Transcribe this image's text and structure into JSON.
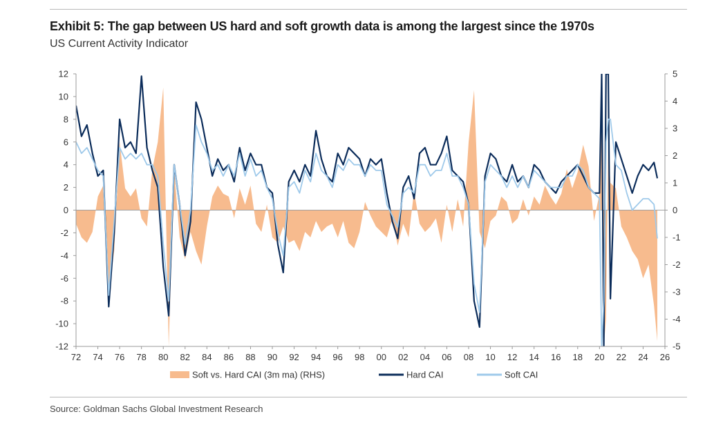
{
  "header": {
    "title": "Exhibit 5: The gap between US hard and soft growth data is among the largest since the 1970s",
    "subtitle": "US Current Activity Indicator"
  },
  "footer": {
    "source": "Source: Goldman Sachs Global Investment Research"
  },
  "chart_data": {
    "type": "line",
    "title": "Exhibit 5: The gap between US hard and soft growth data is among the largest since the 1970s",
    "subtitle": "US Current Activity Indicator",
    "x_ticks": [
      "72",
      "74",
      "76",
      "78",
      "80",
      "82",
      "84",
      "86",
      "88",
      "90",
      "92",
      "94",
      "96",
      "98",
      "00",
      "02",
      "04",
      "06",
      "08",
      "10",
      "12",
      "14",
      "16",
      "18",
      "20",
      "22",
      "24",
      "26"
    ],
    "x_range": [
      1972,
      2026
    ],
    "ylim_left": [
      -12,
      12
    ],
    "y_ticks_left": [
      12,
      10,
      8,
      6,
      4,
      2,
      0,
      -2,
      -4,
      -6,
      -8,
      -10,
      -12
    ],
    "ylim_right": [
      -5,
      5
    ],
    "y_ticks_right": [
      5,
      4,
      3,
      2,
      1,
      0,
      -1,
      -2,
      -3,
      -4,
      -5
    ],
    "grid": false,
    "legend_position": "bottom",
    "colors": {
      "gap": "#f7bb8e",
      "hard": "#0b2c5a",
      "soft": "#9ec9ea"
    },
    "series": [
      {
        "name": "Soft vs. Hard CAI (3m ma) (RHS)",
        "kind": "area",
        "axis": "right",
        "x": [
          1972,
          1972.5,
          1973,
          1973.5,
          1974,
          1974.5,
          1975,
          1975.5,
          1976,
          1976.5,
          1977,
          1977.5,
          1978,
          1978.5,
          1979,
          1979.5,
          1980,
          1980.5,
          1981,
          1981.5,
          1982,
          1982.5,
          1983,
          1983.5,
          1984,
          1984.5,
          1985,
          1985.5,
          1986,
          1986.5,
          1987,
          1987.5,
          1988,
          1988.5,
          1989,
          1989.5,
          1990,
          1990.5,
          1991,
          1991.5,
          1992,
          1992.5,
          1993,
          1993.5,
          1994,
          1994.5,
          1995,
          1995.5,
          1996,
          1996.5,
          1997,
          1997.5,
          1998,
          1998.5,
          1999,
          1999.5,
          2000,
          2000.5,
          2001,
          2001.5,
          2002,
          2002.5,
          2003,
          2003.5,
          2004,
          2004.5,
          2005,
          2005.5,
          2006,
          2006.5,
          2007,
          2007.5,
          2008,
          2008.5,
          2009,
          2009.5,
          2010,
          2010.5,
          2011,
          2011.5,
          2012,
          2012.5,
          2013,
          2013.5,
          2014,
          2014.5,
          2015,
          2015.5,
          2016,
          2016.5,
          2017,
          2017.5,
          2018,
          2018.5,
          2019,
          2019.5,
          2020,
          2020.2,
          2020.4,
          2020.6,
          2020.8,
          2021,
          2021.5,
          2022,
          2022.5,
          2023,
          2023.5,
          2024,
          2024.5,
          2025,
          2025.3
        ],
        "values": [
          -0.5,
          -1.0,
          -1.2,
          -0.8,
          0.5,
          0.9,
          -3.0,
          -1.5,
          2.5,
          0.8,
          0.5,
          0.8,
          -0.3,
          -0.6,
          1.5,
          2.5,
          4.5,
          -5.0,
          1.5,
          -1.0,
          -1.8,
          -0.8,
          -1.5,
          -2.0,
          -0.6,
          0.5,
          0.9,
          0.6,
          0.5,
          -0.3,
          0.8,
          0.2,
          0.9,
          -0.5,
          -0.8,
          0.2,
          -1.0,
          -1.2,
          -0.6,
          -1.2,
          -1.1,
          -1.5,
          -0.8,
          -1.0,
          -0.4,
          -0.8,
          -0.6,
          -0.5,
          -1.0,
          -0.4,
          -1.2,
          -1.4,
          -0.8,
          0.3,
          -0.2,
          -0.6,
          -0.8,
          -1.0,
          -0.3,
          -1.3,
          -0.5,
          -1.0,
          0.7,
          -0.5,
          -0.8,
          -0.6,
          -0.3,
          -1.2,
          0.2,
          -0.8,
          0.4,
          -0.6,
          2.5,
          4.4,
          -0.8,
          -1.4,
          -0.4,
          -0.2,
          0.5,
          0.3,
          -0.5,
          -0.3,
          0.4,
          -0.2,
          0.5,
          0.2,
          0.9,
          0.5,
          0.2,
          0.6,
          1.5,
          0.8,
          1.4,
          2.4,
          1.6,
          -0.4,
          0.6,
          5.0,
          -5.0,
          -4.0,
          2.5,
          1.0,
          0.8,
          -0.6,
          -1.0,
          -1.5,
          -1.8,
          -2.5,
          -2.0,
          -3.5,
          -4.8
        ]
      },
      {
        "name": "Hard CAI",
        "kind": "line",
        "axis": "left",
        "x": [
          1972,
          1972.5,
          1973,
          1973.5,
          1974,
          1974.5,
          1975,
          1975.5,
          1976,
          1976.5,
          1977,
          1977.5,
          1978,
          1978.5,
          1979,
          1979.5,
          1980,
          1980.5,
          1981,
          1981.5,
          1982,
          1982.5,
          1983,
          1983.5,
          1984,
          1984.5,
          1985,
          1985.5,
          1986,
          1986.5,
          1987,
          1987.5,
          1988,
          1988.5,
          1989,
          1989.5,
          1990,
          1990.5,
          1991,
          1991.5,
          1992,
          1992.5,
          1993,
          1993.5,
          1994,
          1994.5,
          1995,
          1995.5,
          1996,
          1996.5,
          1997,
          1997.5,
          1998,
          1998.5,
          1999,
          1999.5,
          2000,
          2000.5,
          2001,
          2001.5,
          2002,
          2002.5,
          2003,
          2003.5,
          2004,
          2004.5,
          2005,
          2005.5,
          2006,
          2006.5,
          2007,
          2007.5,
          2008,
          2008.5,
          2009,
          2009.5,
          2010,
          2010.5,
          2011,
          2011.5,
          2012,
          2012.5,
          2013,
          2013.5,
          2014,
          2014.5,
          2015,
          2015.5,
          2016,
          2016.5,
          2017,
          2017.5,
          2018,
          2018.5,
          2019,
          2019.5,
          2020,
          2020.2,
          2020.4,
          2020.6,
          2020.8,
          2021,
          2021.5,
          2022,
          2022.5,
          2023,
          2023.5,
          2024,
          2024.5,
          2025,
          2025.3
        ],
        "values": [
          9.2,
          6.5,
          7.5,
          5.0,
          3.0,
          3.5,
          -8.5,
          -2.0,
          8.0,
          5.5,
          6.0,
          5.0,
          11.8,
          5.5,
          3.5,
          2.0,
          -5.0,
          -9.3,
          4.0,
          0.5,
          -4.0,
          -1.0,
          9.5,
          8.0,
          5.5,
          3.0,
          4.5,
          3.5,
          4.0,
          2.5,
          5.5,
          3.5,
          5.0,
          4.0,
          4.0,
          2.0,
          1.5,
          -3.0,
          -5.5,
          2.5,
          3.5,
          2.5,
          4.0,
          3.0,
          7.0,
          4.5,
          3.0,
          2.5,
          5.0,
          4.0,
          5.5,
          5.0,
          4.5,
          3.0,
          4.5,
          4.0,
          4.5,
          1.5,
          -1.0,
          -2.5,
          2.0,
          3.0,
          1.0,
          5.0,
          5.5,
          4.0,
          4.0,
          5.0,
          6.5,
          3.5,
          3.0,
          2.5,
          0.5,
          -8.0,
          -10.3,
          3.0,
          5.0,
          4.5,
          3.0,
          2.5,
          4.0,
          2.5,
          3.0,
          2.0,
          4.0,
          3.5,
          2.5,
          2.0,
          1.5,
          2.5,
          3.0,
          3.5,
          4.0,
          3.0,
          2.0,
          1.5,
          1.5,
          12.0,
          -12.0,
          12.0,
          12.0,
          -7.8,
          6.0,
          4.5,
          3.0,
          1.5,
          3.0,
          4.0,
          3.5,
          4.2,
          2.8
        ]
      },
      {
        "name": "Soft CAI",
        "kind": "line",
        "axis": "left",
        "x": [
          1972,
          1972.5,
          1973,
          1973.5,
          1974,
          1974.5,
          1975,
          1975.5,
          1976,
          1976.5,
          1977,
          1977.5,
          1978,
          1978.5,
          1979,
          1979.5,
          1980,
          1980.5,
          1981,
          1981.5,
          1982,
          1982.5,
          1983,
          1983.5,
          1984,
          1984.5,
          1985,
          1985.5,
          1986,
          1986.5,
          1987,
          1987.5,
          1988,
          1988.5,
          1989,
          1989.5,
          1990,
          1990.5,
          1991,
          1991.5,
          1992,
          1992.5,
          1993,
          1993.5,
          1994,
          1994.5,
          1995,
          1995.5,
          1996,
          1996.5,
          1997,
          1997.5,
          1998,
          1998.5,
          1999,
          1999.5,
          2000,
          2000.5,
          2001,
          2001.5,
          2002,
          2002.5,
          2003,
          2003.5,
          2004,
          2004.5,
          2005,
          2005.5,
          2006,
          2006.5,
          2007,
          2007.5,
          2008,
          2008.5,
          2009,
          2009.5,
          2010,
          2010.5,
          2011,
          2011.5,
          2012,
          2012.5,
          2013,
          2013.5,
          2014,
          2014.5,
          2015,
          2015.5,
          2016,
          2016.5,
          2017,
          2017.5,
          2018,
          2018.5,
          2019,
          2019.5,
          2020,
          2020.2,
          2020.4,
          2020.6,
          2020.8,
          2021,
          2021.5,
          2022,
          2022.5,
          2023,
          2023.5,
          2024,
          2024.5,
          2025,
          2025.3
        ],
        "values": [
          6.0,
          5.0,
          5.5,
          4.5,
          3.5,
          3.0,
          -7.5,
          -1.0,
          5.5,
          4.5,
          5.0,
          4.5,
          5.0,
          4.0,
          4.0,
          3.0,
          -3.0,
          -8.0,
          4.0,
          0.5,
          -3.0,
          0.0,
          7.5,
          6.0,
          5.0,
          3.5,
          4.0,
          3.0,
          4.0,
          3.0,
          5.0,
          3.0,
          4.5,
          3.0,
          3.5,
          2.0,
          1.0,
          -2.0,
          -4.0,
          2.0,
          2.5,
          1.5,
          3.5,
          2.5,
          5.0,
          3.5,
          3.0,
          2.0,
          4.0,
          3.5,
          4.5,
          4.0,
          4.0,
          3.0,
          4.0,
          3.5,
          3.5,
          0.5,
          -0.5,
          -1.5,
          1.5,
          2.0,
          1.5,
          4.0,
          4.0,
          3.0,
          3.5,
          3.5,
          5.0,
          3.0,
          3.0,
          2.0,
          0.5,
          -6.5,
          -9.0,
          2.5,
          4.0,
          3.5,
          3.0,
          2.0,
          3.0,
          2.0,
          3.0,
          2.0,
          3.5,
          3.0,
          2.5,
          2.0,
          2.0,
          2.0,
          3.0,
          3.0,
          4.0,
          3.5,
          2.0,
          1.5,
          1.0,
          -12.0,
          -8.0,
          6.0,
          8.0,
          8.0,
          4.0,
          3.5,
          1.5,
          0.0,
          0.5,
          1.0,
          1.0,
          0.5,
          -2.5
        ]
      }
    ]
  }
}
